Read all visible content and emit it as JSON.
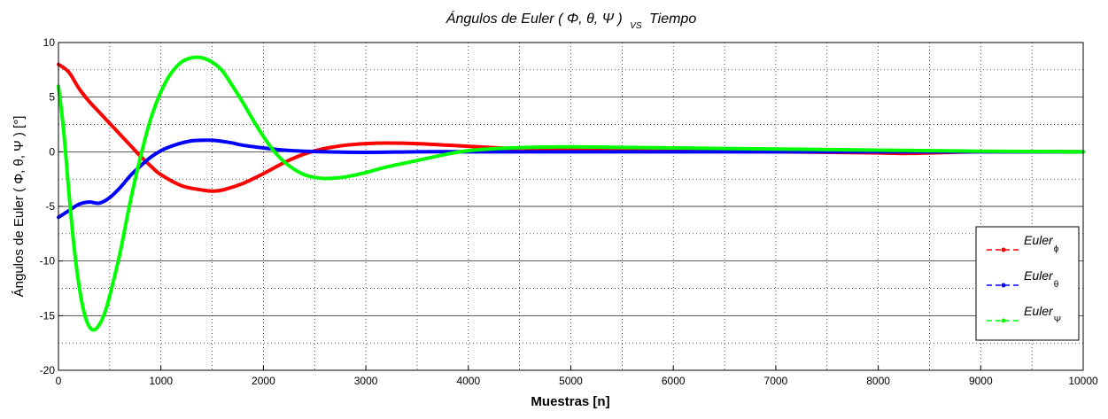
{
  "chart_data": {
    "type": "line",
    "title_main": "Ángulos de Euler ( Φ, θ, Ψ )",
    "title_vs": "VS",
    "title_end": "Tiempo",
    "xlabel": "Muestras [n]",
    "ylabel": "Ángulos de Euler ( Φ, θ, Ψ ) [°]",
    "xlim": [
      0,
      10000
    ],
    "ylim": [
      -20,
      10
    ],
    "xticks": [
      0,
      1000,
      2000,
      3000,
      4000,
      5000,
      6000,
      7000,
      8000,
      9000,
      10000
    ],
    "yticks": [
      -20,
      -15,
      -10,
      -5,
      0,
      5,
      10
    ],
    "grid": true,
    "legend_placement": "bottom-right",
    "series": [
      {
        "name": "Euler",
        "subscript": "ϕ",
        "color": "#ff0000",
        "x": [
          0,
          100,
          200,
          300,
          400,
          500,
          600,
          700,
          800,
          900,
          1000,
          1200,
          1400,
          1500,
          1600,
          1800,
          2000,
          2200,
          2400,
          2600,
          2800,
          3000,
          3200,
          3500,
          3800,
          4000,
          4300,
          4600,
          5000,
          6000,
          7000,
          8000,
          8300,
          9000,
          10000
        ],
        "y": [
          8,
          7.3,
          5.8,
          4.6,
          3.6,
          2.6,
          1.6,
          0.6,
          -0.4,
          -1.3,
          -2.1,
          -3.1,
          -3.5,
          -3.6,
          -3.5,
          -2.9,
          -2.0,
          -1.0,
          -0.2,
          0.3,
          0.6,
          0.75,
          0.8,
          0.75,
          0.6,
          0.5,
          0.35,
          0.25,
          0.15,
          0.05,
          0,
          -0.1,
          -0.15,
          0,
          0
        ]
      },
      {
        "name": "Euler",
        "subscript": "θ",
        "color": "#0000ff",
        "x": [
          0,
          100,
          200,
          300,
          400,
          500,
          600,
          700,
          800,
          900,
          1000,
          1100,
          1200,
          1300,
          1400,
          1500,
          1600,
          1700,
          1800,
          2000,
          2200,
          2400,
          2600,
          3000,
          3500,
          4000,
          5000,
          6000,
          7000,
          8000,
          9000,
          10000
        ],
        "y": [
          -6,
          -5.4,
          -4.8,
          -4.6,
          -4.7,
          -4.2,
          -3.3,
          -2.2,
          -1.3,
          -0.5,
          0.1,
          0.5,
          0.8,
          1.0,
          1.05,
          1.05,
          0.95,
          0.8,
          0.6,
          0.35,
          0.15,
          0.05,
          0,
          -0.05,
          0,
          0,
          0,
          0,
          0,
          0,
          0,
          0
        ]
      },
      {
        "name": "Euler",
        "subscript": "Ψ",
        "color": "#00ff00",
        "x": [
          0,
          50,
          100,
          150,
          200,
          250,
          300,
          350,
          400,
          450,
          500,
          600,
          700,
          800,
          900,
          1000,
          1100,
          1200,
          1300,
          1400,
          1500,
          1600,
          1700,
          1800,
          1900,
          2000,
          2100,
          2200,
          2300,
          2400,
          2500,
          2600,
          2700,
          2800,
          3000,
          3200,
          3500,
          3800,
          4000,
          4300,
          4600,
          5000,
          5500,
          6000,
          6500,
          7000,
          7500,
          8000,
          8500,
          9000,
          10000
        ],
        "y": [
          6,
          2,
          -3.5,
          -8.5,
          -12.2,
          -14.7,
          -16.0,
          -16.3,
          -15.8,
          -14.8,
          -13.2,
          -9.3,
          -4.6,
          -0.5,
          3.0,
          5.5,
          7.2,
          8.2,
          8.6,
          8.6,
          8.2,
          7.4,
          6.0,
          4.5,
          2.9,
          1.4,
          0.1,
          -0.9,
          -1.6,
          -2.1,
          -2.35,
          -2.45,
          -2.4,
          -2.3,
          -1.9,
          -1.4,
          -0.8,
          -0.2,
          0.1,
          0.3,
          0.4,
          0.45,
          0.4,
          0.35,
          0.3,
          0.25,
          0.2,
          0.15,
          0.1,
          0.05,
          0
        ]
      }
    ]
  }
}
